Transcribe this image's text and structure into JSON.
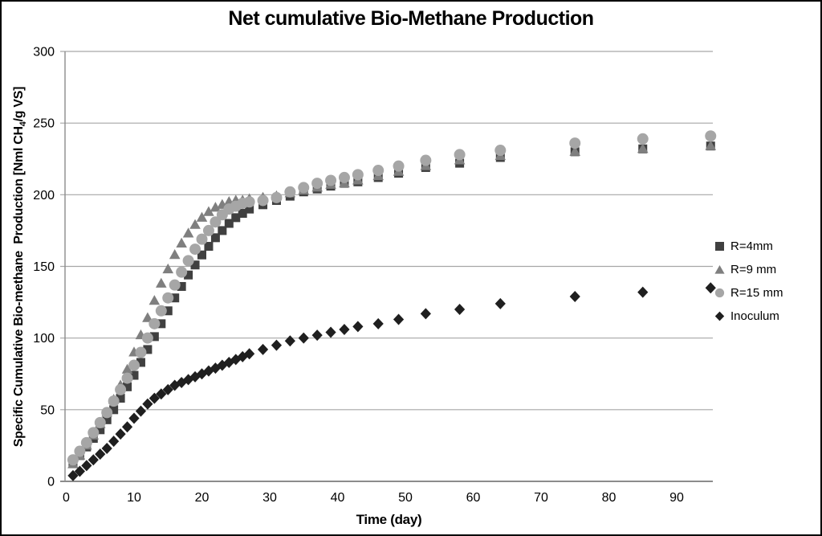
{
  "title": "Net cumulative Bio-Methane Production",
  "axes": {
    "x_label": "Time (day)",
    "y_label_prefix": "Specific Cumulative Bio-methane  Production [Nml CH",
    "y_label_sub": "4",
    "y_label_suffix": "/g VS]",
    "x_ticks": [
      0,
      10,
      20,
      30,
      40,
      50,
      60,
      70,
      80,
      90
    ],
    "y_ticks": [
      0,
      50,
      100,
      150,
      200,
      250,
      300
    ]
  },
  "legend": [
    {
      "label": "R=4mm",
      "marker": "square",
      "color": "#404040"
    },
    {
      "label": "R=9 mm",
      "marker": "triangle",
      "color": "#7F7F7F"
    },
    {
      "label": "R=15 mm",
      "marker": "circle",
      "color": "#A6A6A6"
    },
    {
      "label": "Inoculum",
      "marker": "diamond",
      "color": "#1F1F1F"
    }
  ],
  "colors": {
    "gridline": "#A6A6A6",
    "axis": "#8C8C8C",
    "text": "#000000"
  },
  "chart_data": {
    "type": "scatter",
    "title": "Net cumulative Bio-Methane Production",
    "xlabel": "Time (day)",
    "ylabel": "Specific Cumulative Bio-methane Production [Nml CH4/g VS]",
    "xlim": [
      0,
      97
    ],
    "ylim": [
      0,
      300
    ],
    "grid": "horizontal",
    "legend_position": "right",
    "x": [
      1,
      2,
      3,
      4,
      5,
      6,
      7,
      8,
      9,
      10,
      11,
      12,
      13,
      14,
      15,
      16,
      17,
      18,
      19,
      20,
      21,
      22,
      23,
      24,
      25,
      26,
      27,
      29,
      31,
      33,
      35,
      37,
      39,
      41,
      43,
      46,
      49,
      53,
      58,
      64,
      75,
      85,
      95
    ],
    "series": [
      {
        "name": "R=4mm",
        "marker": "square",
        "color": "#404040",
        "values": [
          13,
          18,
          24,
          30,
          36,
          43,
          50,
          58,
          66,
          74,
          83,
          92,
          101,
          110,
          119,
          128,
          136,
          144,
          151,
          158,
          164,
          170,
          175,
          180,
          184,
          187,
          190,
          193,
          196,
          199,
          202,
          204,
          206,
          208,
          209,
          212,
          215,
          219,
          222,
          226,
          230,
          232,
          234
        ]
      },
      {
        "name": "R=9 mm",
        "marker": "triangle",
        "color": "#7F7F7F",
        "values": [
          12,
          18,
          25,
          32,
          40,
          48,
          57,
          67,
          78,
          90,
          102,
          114,
          126,
          138,
          148,
          158,
          166,
          173,
          179,
          184,
          188,
          191,
          193,
          195,
          196,
          196,
          197,
          198,
          199,
          201,
          203,
          205,
          207,
          208,
          210,
          213,
          216,
          220,
          224,
          227,
          230,
          232,
          234
        ]
      },
      {
        "name": "R=15 mm",
        "marker": "circle",
        "color": "#A6A6A6",
        "values": [
          15,
          21,
          27,
          34,
          41,
          48,
          56,
          64,
          72,
          81,
          90,
          100,
          110,
          119,
          128,
          137,
          146,
          154,
          162,
          169,
          175,
          181,
          186,
          190,
          192,
          194,
          195,
          196,
          198,
          202,
          205,
          208,
          210,
          212,
          214,
          217,
          220,
          224,
          228,
          231,
          236,
          239,
          241
        ]
      },
      {
        "name": "Inoculum",
        "marker": "diamond",
        "color": "#1F1F1F",
        "values": [
          4,
          7,
          11,
          15,
          19,
          23,
          28,
          33,
          38,
          44,
          49,
          54,
          58,
          61,
          64,
          67,
          69,
          71,
          73,
          75,
          77,
          79,
          81,
          83,
          85,
          87,
          89,
          92,
          95,
          98,
          100,
          102,
          104,
          106,
          108,
          110,
          113,
          117,
          120,
          124,
          129,
          132,
          135
        ]
      }
    ]
  }
}
